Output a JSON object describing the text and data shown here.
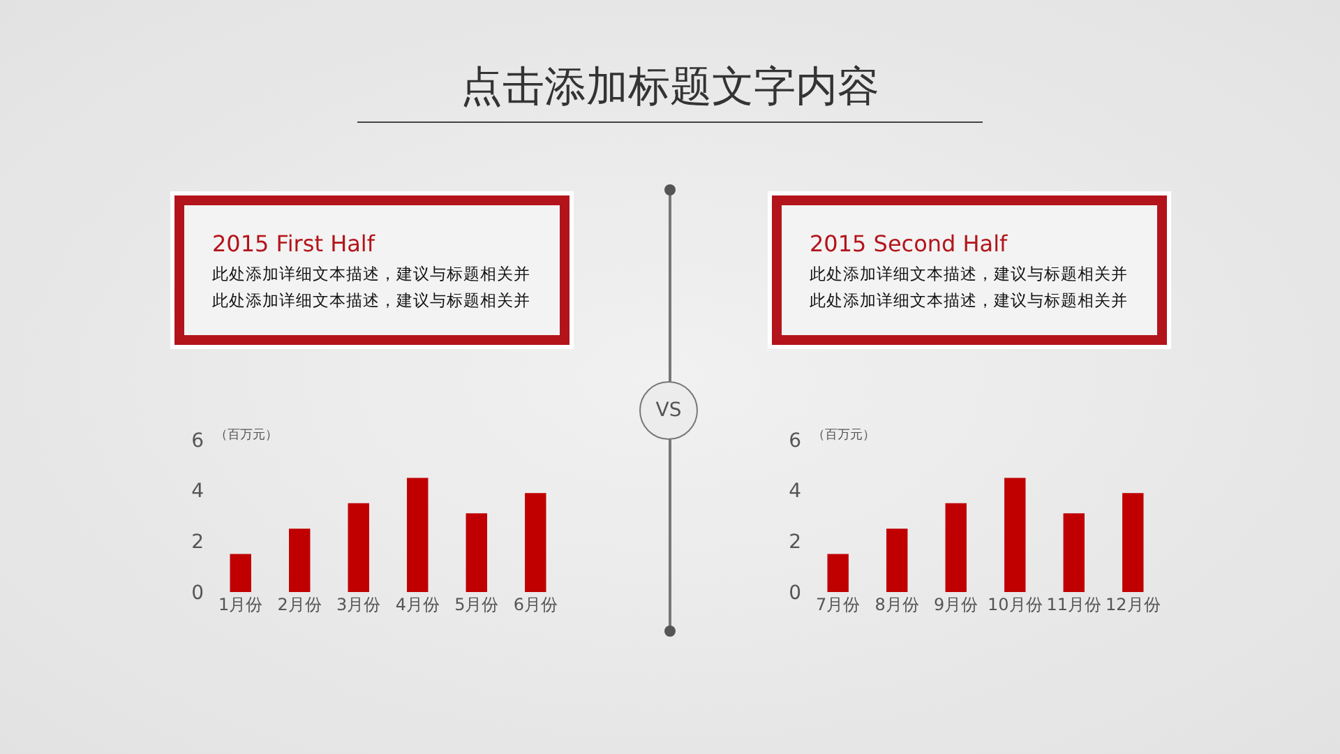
{
  "chart_data": [
    {
      "type": "other",
      "title": "点击添加标题文字内容",
      "annotations": [
        "VS"
      ]
    },
    {
      "type": "bar",
      "title": "2015 First Half",
      "annotations": [
        "此处添加详细文本描述，建议与标题相关并",
        "此处添加详细文本描述，建议与标题相关并"
      ],
      "ylabel": "（百万元）",
      "categories": [
        "1月份",
        "2月份",
        "3月份",
        "4月份",
        "5月份",
        "6月份"
      ],
      "values": [
        1.5,
        2.5,
        3.5,
        4.5,
        3.1,
        3.9
      ],
      "color": "#c00000",
      "ylim": [
        0,
        6
      ],
      "yticks": [
        0,
        2,
        4,
        6
      ]
    },
    {
      "type": "bar",
      "title": "2015 Second Half",
      "annotations": [
        "此处添加详细文本描述，建议与标题相关并",
        "此处添加详细文本描述，建议与标题相关并"
      ],
      "ylabel": "（百万元）",
      "categories": [
        "7月份",
        "8月份",
        "9月份",
        "10月份",
        "11月份",
        "12月份"
      ],
      "values": [
        1.5,
        2.5,
        3.5,
        4.5,
        3.1,
        3.9
      ],
      "color": "#c00000",
      "ylim": [
        0,
        6
      ],
      "yticks": [
        0,
        2,
        4,
        6
      ]
    }
  ]
}
